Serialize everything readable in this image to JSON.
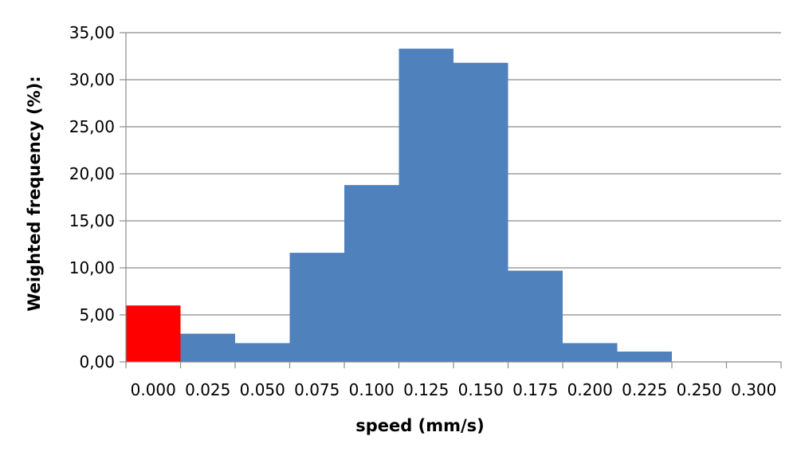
{
  "chart_data": {
    "type": "bar",
    "title": "",
    "xlabel": "speed (mm/s)",
    "ylabel": "Weighted frequency (%):",
    "ylim": [
      0,
      35
    ],
    "y_ticks": [
      "0,00",
      "5,00",
      "10,00",
      "15,00",
      "20,00",
      "25,00",
      "30,00",
      "35,00"
    ],
    "x_ticks": [
      "0.000",
      "0.025",
      "0.050",
      "0.075",
      "0.100",
      "0.125",
      "0.150",
      "0.175",
      "0.200",
      "0.225",
      "0.250",
      "0.300"
    ],
    "categories": [
      "0.000",
      "0.025",
      "0.050",
      "0.075",
      "0.100",
      "0.125",
      "0.150",
      "0.175",
      "0.200",
      "0.225",
      "0.250",
      "0.300"
    ],
    "values": [
      6.0,
      3.0,
      2.0,
      11.6,
      18.8,
      33.3,
      31.8,
      9.7,
      2.0,
      1.1,
      0,
      0
    ],
    "highlight_index": 0,
    "colors": {
      "bar": "#4f81bd",
      "highlight": "#ff0000",
      "grid": "#8c8c8c",
      "axis": "#8c8c8c"
    },
    "grid": true,
    "legend": "none"
  }
}
